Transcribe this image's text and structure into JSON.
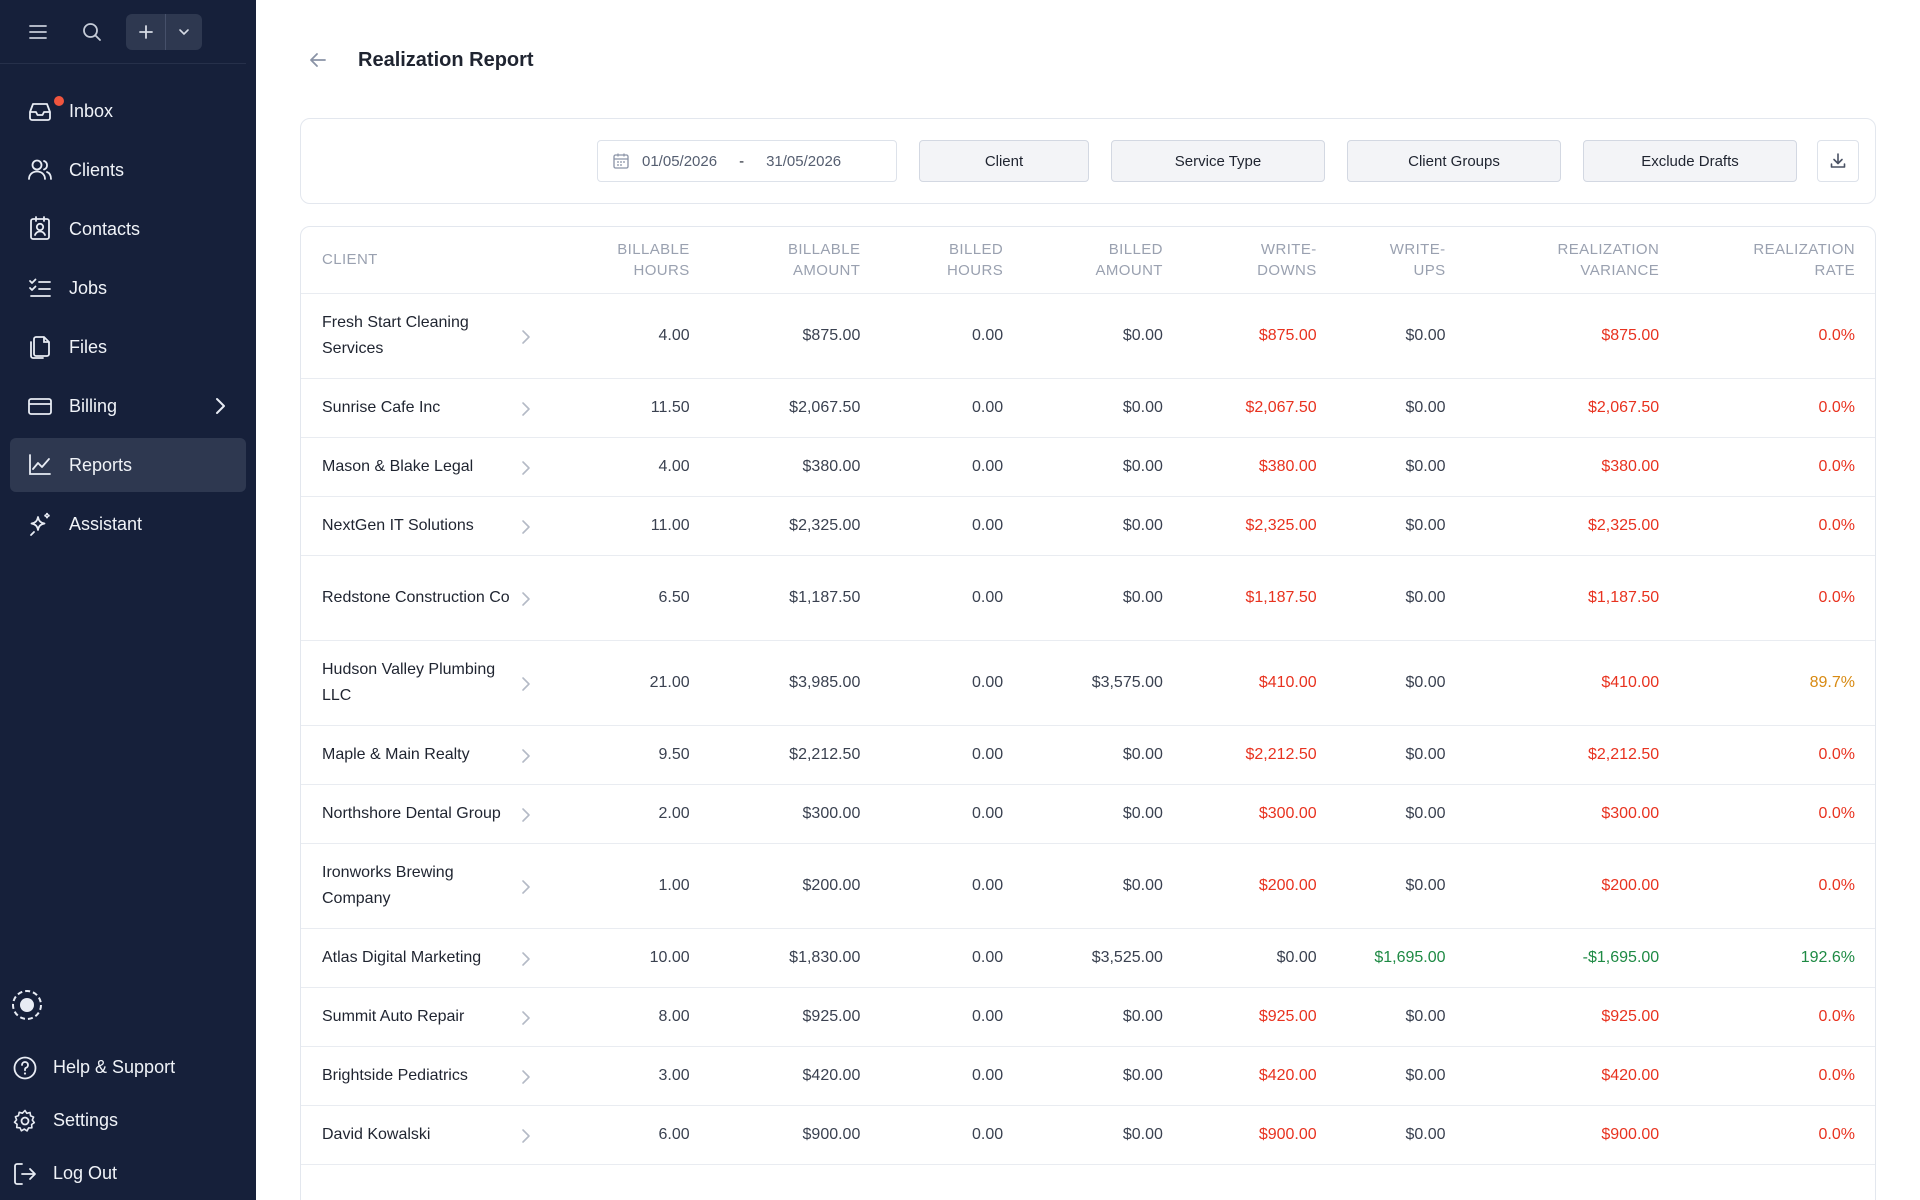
{
  "sidebar": {
    "nav": [
      {
        "label": "Inbox",
        "icon": "inbox-icon",
        "has_badge": true
      },
      {
        "label": "Clients",
        "icon": "users-icon"
      },
      {
        "label": "Contacts",
        "icon": "contact-card-icon"
      },
      {
        "label": "Jobs",
        "icon": "checklist-icon"
      },
      {
        "label": "Files",
        "icon": "files-icon"
      },
      {
        "label": "Billing",
        "icon": "billing-card-icon",
        "has_submenu": true
      },
      {
        "label": "Reports",
        "icon": "line-chart-icon",
        "active": true
      },
      {
        "label": "Assistant",
        "icon": "sparkle-icon"
      }
    ],
    "bottom": [
      {
        "label": "Help & Support",
        "icon": "help-circle-icon"
      },
      {
        "label": "Settings",
        "icon": "gear-icon"
      },
      {
        "label": "Log Out",
        "icon": "logout-icon"
      }
    ]
  },
  "header": {
    "title": "Realization Report"
  },
  "filters": {
    "date_from": "01/05/2026",
    "date_sep": "-",
    "date_to": "31/05/2026",
    "client_label": "Client",
    "service_type_label": "Service Type",
    "client_groups_label": "Client Groups",
    "exclude_drafts_label": "Exclude Drafts"
  },
  "table": {
    "columns": [
      {
        "line1": "Client",
        "line2": ""
      },
      {
        "line1": "Billable",
        "line2": "Hours"
      },
      {
        "line1": "Billable",
        "line2": "Amount"
      },
      {
        "line1": "Billed",
        "line2": "Hours"
      },
      {
        "line1": "Billed",
        "line2": "Amount"
      },
      {
        "line1": "Write-",
        "line2": "Downs"
      },
      {
        "line1": "Write-",
        "line2": "Ups"
      },
      {
        "line1": "Realization",
        "line2": "Variance"
      },
      {
        "line1": "Realization",
        "line2": "Rate"
      }
    ],
    "rows": [
      {
        "client": "Fresh Start Cleaning Services",
        "billable_hours": "4.00",
        "billable_amount": "$875.00",
        "billed_hours": "0.00",
        "billed_amount": "$0.00",
        "write_downs": "$875.00",
        "write_ups": "$0.00",
        "variance": "$875.00",
        "rate": "0.0%"
      },
      {
        "client": "Sunrise Cafe Inc",
        "billable_hours": "11.50",
        "billable_amount": "$2,067.50",
        "billed_hours": "0.00",
        "billed_amount": "$0.00",
        "write_downs": "$2,067.50",
        "write_ups": "$0.00",
        "variance": "$2,067.50",
        "rate": "0.0%"
      },
      {
        "client": "Mason & Blake Legal",
        "billable_hours": "4.00",
        "billable_amount": "$380.00",
        "billed_hours": "0.00",
        "billed_amount": "$0.00",
        "write_downs": "$380.00",
        "write_ups": "$0.00",
        "variance": "$380.00",
        "rate": "0.0%"
      },
      {
        "client": "NextGen IT Solutions",
        "billable_hours": "11.00",
        "billable_amount": "$2,325.00",
        "billed_hours": "0.00",
        "billed_amount": "$0.00",
        "write_downs": "$2,325.00",
        "write_ups": "$0.00",
        "variance": "$2,325.00",
        "rate": "0.0%"
      },
      {
        "client": "Redstone Construction Co",
        "billable_hours": "6.50",
        "billable_amount": "$1,187.50",
        "billed_hours": "0.00",
        "billed_amount": "$0.00",
        "write_downs": "$1,187.50",
        "write_ups": "$0.00",
        "variance": "$1,187.50",
        "rate": "0.0%"
      },
      {
        "client": "Hudson Valley Plumbing LLC",
        "billable_hours": "21.00",
        "billable_amount": "$3,985.00",
        "billed_hours": "0.00",
        "billed_amount": "$3,575.00",
        "write_downs": "$410.00",
        "write_ups": "$0.00",
        "variance": "$410.00",
        "rate": "89.7%"
      },
      {
        "client": "Maple & Main Realty",
        "billable_hours": "9.50",
        "billable_amount": "$2,212.50",
        "billed_hours": "0.00",
        "billed_amount": "$0.00",
        "write_downs": "$2,212.50",
        "write_ups": "$0.00",
        "variance": "$2,212.50",
        "rate": "0.0%"
      },
      {
        "client": "Northshore Dental Group",
        "billable_hours": "2.00",
        "billable_amount": "$300.00",
        "billed_hours": "0.00",
        "billed_amount": "$0.00",
        "write_downs": "$300.00",
        "write_ups": "$0.00",
        "variance": "$300.00",
        "rate": "0.0%"
      },
      {
        "client": "Ironworks Brewing Company",
        "billable_hours": "1.00",
        "billable_amount": "$200.00",
        "billed_hours": "0.00",
        "billed_amount": "$0.00",
        "write_downs": "$200.00",
        "write_ups": "$0.00",
        "variance": "$200.00",
        "rate": "0.0%"
      },
      {
        "client": "Atlas Digital Marketing",
        "billable_hours": "10.00",
        "billable_amount": "$1,830.00",
        "billed_hours": "0.00",
        "billed_amount": "$3,525.00",
        "write_downs": "$0.00",
        "write_ups": "$1,695.00",
        "variance": "-$1,695.00",
        "rate": "192.6%"
      },
      {
        "client": "Summit Auto Repair",
        "billable_hours": "8.00",
        "billable_amount": "$925.00",
        "billed_hours": "0.00",
        "billed_amount": "$0.00",
        "write_downs": "$925.00",
        "write_ups": "$0.00",
        "variance": "$925.00",
        "rate": "0.0%"
      },
      {
        "client": "Brightside Pediatrics",
        "billable_hours": "3.00",
        "billable_amount": "$420.00",
        "billed_hours": "0.00",
        "billed_amount": "$0.00",
        "write_downs": "$420.00",
        "write_ups": "$0.00",
        "variance": "$420.00",
        "rate": "0.0%"
      },
      {
        "client": "David Kowalski",
        "billable_hours": "6.00",
        "billable_amount": "$900.00",
        "billed_hours": "0.00",
        "billed_amount": "$0.00",
        "write_downs": "$900.00",
        "write_ups": "$0.00",
        "variance": "$900.00",
        "rate": "0.0%"
      }
    ]
  },
  "colors": {
    "sidebar_bg": "#16203a",
    "active_nav_bg": "#2e3850",
    "negative_red": "#e8321f",
    "positive_green": "#1e8a44",
    "warning_amber": "#d88a12"
  }
}
